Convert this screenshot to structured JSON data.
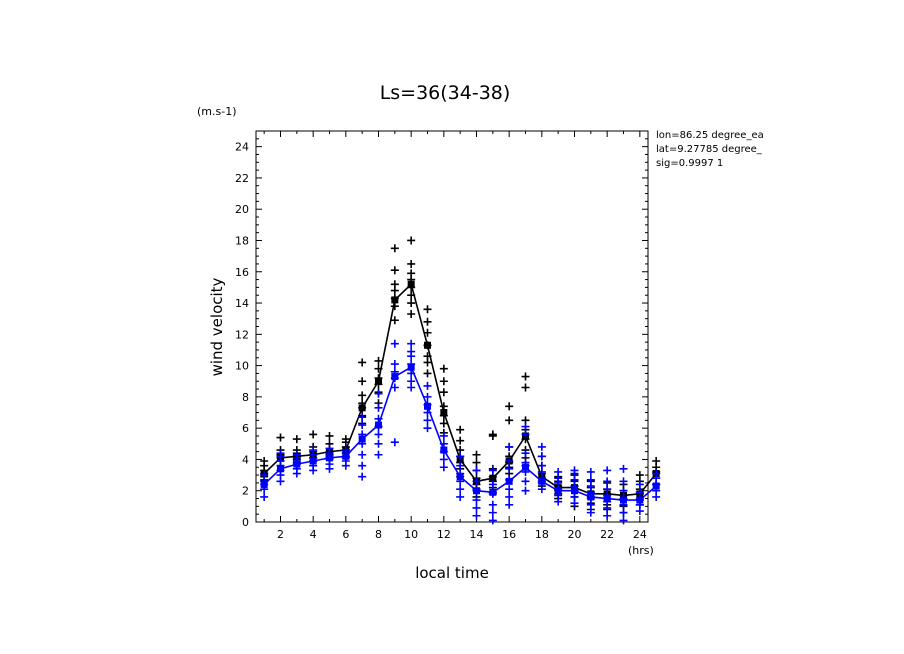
{
  "chart_data": {
    "type": "line",
    "title": "Ls=36(34-38)",
    "xlabel": "local time",
    "ylabel": "wind velocity",
    "x_unit": "(hrs)",
    "y_unit": "(m.s-1)",
    "xlim": [
      0.5,
      24.5
    ],
    "ylim": [
      0,
      25
    ],
    "x_ticks": [
      2,
      4,
      6,
      8,
      10,
      12,
      14,
      16,
      18,
      20,
      22,
      24
    ],
    "y_ticks": [
      0,
      2,
      4,
      6,
      8,
      10,
      12,
      14,
      16,
      18,
      20,
      22,
      24
    ],
    "grid": false,
    "info_lines": [
      "lon=86.25 degree_ea",
      "lat=9.27785 degree_",
      "sig=0.9997 1"
    ],
    "x": [
      1,
      2,
      3,
      4,
      5,
      6,
      7,
      8,
      9,
      10,
      11,
      12,
      13,
      14,
      15,
      16,
      17,
      18,
      19,
      20,
      21,
      22,
      23,
      24,
      25
    ],
    "series": [
      {
        "color": "#000000",
        "mean": [
          3.1,
          4.1,
          4.2,
          4.3,
          4.5,
          4.6,
          7.3,
          9.0,
          14.2,
          15.2,
          11.3,
          7.0,
          4.0,
          2.6,
          2.8,
          3.9,
          5.5,
          2.9,
          2.2,
          2.2,
          1.8,
          1.8,
          1.7,
          1.8,
          3.1
        ],
        "samples": [
          [
            2.6,
            2.9,
            3.1,
            3.3,
            3.6,
            3.9
          ],
          [
            3.6,
            3.9,
            4.1,
            4.3,
            4.6,
            5.4
          ],
          [
            3.8,
            4.0,
            4.2,
            4.4,
            4.6,
            5.3
          ],
          [
            3.9,
            4.1,
            4.3,
            4.5,
            4.8,
            5.6
          ],
          [
            4.1,
            4.3,
            4.5,
            4.7,
            5.0,
            5.5
          ],
          [
            4.2,
            4.4,
            4.6,
            4.8,
            5.1,
            5.3
          ],
          [
            6.3,
            6.8,
            7.3,
            7.6,
            8.1,
            9.0,
            10.2
          ],
          [
            7.6,
            8.3,
            8.8,
            9.2,
            9.8,
            10.3
          ],
          [
            12.9,
            13.8,
            14.3,
            14.8,
            15.2,
            16.1,
            17.5
          ],
          [
            13.3,
            14.0,
            14.5,
            15.0,
            15.5,
            15.9,
            16.5,
            18.0
          ],
          [
            9.5,
            10.2,
            10.6,
            11.3,
            12.1,
            12.8,
            13.6
          ],
          [
            5.7,
            6.3,
            6.8,
            7.4,
            8.3,
            9.0,
            9.8
          ],
          [
            2.9,
            3.4,
            3.8,
            4.2,
            4.6,
            5.2,
            5.9
          ],
          [
            1.6,
            2.1,
            2.4,
            2.8,
            3.3,
            3.8,
            4.3
          ],
          [
            1.9,
            2.2,
            2.6,
            2.9,
            3.4,
            5.5,
            5.6
          ],
          [
            3.1,
            3.5,
            3.8,
            4.2,
            4.8,
            6.5,
            7.4
          ],
          [
            3.6,
            4.1,
            4.6,
            5.3,
            5.9,
            6.5,
            8.6,
            9.3
          ],
          [
            2.3,
            2.6,
            2.8,
            3.1,
            3.6,
            4.2
          ],
          [
            1.5,
            1.8,
            2.0,
            2.3,
            2.6,
            2.9
          ],
          [
            1.0,
            1.6,
            2.0,
            2.3,
            2.6,
            3.0
          ],
          [
            0.8,
            1.2,
            1.6,
            1.9,
            2.2,
            2.6
          ],
          [
            0.8,
            1.1,
            1.5,
            1.8,
            2.1,
            2.5
          ],
          [
            0.6,
            1.0,
            1.4,
            1.7,
            2.0,
            2.4
          ],
          [
            1.1,
            1.4,
            1.8,
            2.1,
            2.6,
            3.0
          ],
          [
            2.4,
            2.8,
            3.2,
            3.5,
            3.9
          ]
        ]
      },
      {
        "color": "#0000ff",
        "mean": [
          2.4,
          3.4,
          3.7,
          3.9,
          4.1,
          4.2,
          5.3,
          6.2,
          9.3,
          9.9,
          7.4,
          4.6,
          2.9,
          2.0,
          1.9,
          2.6,
          3.5,
          2.6,
          2.0,
          2.0,
          1.6,
          1.5,
          1.4,
          1.4,
          2.3
        ],
        "samples": [
          [
            1.6,
            2.1,
            2.4,
            2.7,
            3.0
          ],
          [
            2.6,
            3.0,
            3.3,
            3.6,
            3.9,
            4.2,
            4.4
          ],
          [
            3.1,
            3.4,
            3.7,
            3.9,
            4.1,
            4.3
          ],
          [
            3.3,
            3.6,
            3.9,
            4.1,
            4.3,
            4.6
          ],
          [
            3.4,
            3.7,
            4.0,
            4.2,
            4.4,
            4.7
          ],
          [
            3.6,
            3.9,
            4.1,
            4.4,
            4.6
          ],
          [
            2.9,
            3.6,
            4.3,
            5.0,
            5.6,
            6.2,
            6.7
          ],
          [
            4.3,
            5.0,
            5.6,
            6.1,
            6.6,
            7.3,
            8.2
          ],
          [
            5.1,
            8.6,
            9.2,
            9.6,
            10.1,
            11.4
          ],
          [
            8.6,
            9.0,
            9.5,
            10.1,
            10.6,
            10.9,
            11.4
          ],
          [
            6.0,
            6.5,
            7.0,
            7.5,
            8.0,
            8.7
          ],
          [
            3.5,
            4.0,
            4.5,
            5.0,
            5.5
          ],
          [
            1.6,
            2.1,
            2.6,
            3.1,
            3.6,
            4.2
          ],
          [
            0.4,
            0.9,
            1.4,
            2.0,
            2.6,
            3.3
          ],
          [
            0.1,
            0.6,
            1.1,
            1.8,
            2.4,
            3.3
          ],
          [
            1.1,
            1.6,
            2.1,
            2.7,
            3.4,
            3.9,
            4.8
          ],
          [
            2.0,
            2.6,
            3.2,
            3.8,
            4.4,
            5.6,
            6.1
          ],
          [
            2.1,
            2.5,
            2.8,
            3.2,
            3.6,
            4.2,
            4.8
          ],
          [
            1.3,
            1.7,
            2.1,
            2.5,
            2.8,
            3.2
          ],
          [
            1.2,
            1.6,
            2.0,
            2.3,
            2.7,
            3.1,
            3.3
          ],
          [
            0.6,
            1.1,
            1.5,
            1.9,
            2.3,
            2.7,
            3.2
          ],
          [
            0.4,
            0.9,
            1.3,
            1.7,
            2.1,
            2.6,
            3.3
          ],
          [
            0.1,
            0.6,
            1.1,
            1.5,
            2.0,
            2.6,
            3.4
          ],
          [
            0.7,
            1.1,
            1.5,
            1.9,
            2.4
          ],
          [
            1.6,
            2.0,
            2.4,
            2.8,
            3.1
          ]
        ]
      }
    ]
  }
}
